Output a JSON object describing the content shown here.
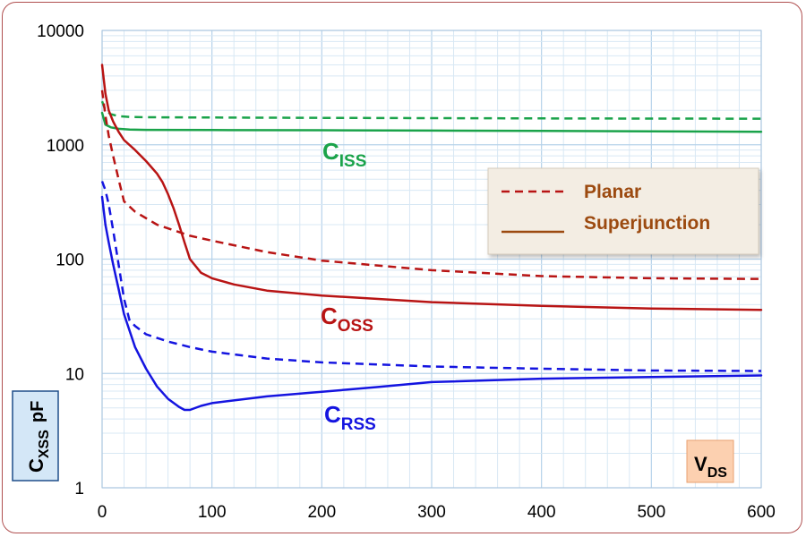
{
  "chart_data": {
    "type": "line",
    "title": "",
    "x_axis": {
      "scale": "linear",
      "range": [
        0,
        600
      ],
      "ticks": [
        0,
        100,
        200,
        300,
        400,
        500,
        600
      ],
      "tick_labels": [
        "0",
        "100",
        "200",
        "300",
        "400",
        "500",
        "600"
      ],
      "label_main": "V",
      "label_sub": "DS"
    },
    "y_axis": {
      "scale": "log",
      "range": [
        1,
        10000
      ],
      "ticks": [
        1,
        10,
        100,
        1000,
        10000
      ],
      "tick_labels": [
        "1",
        "10",
        "100",
        "1000",
        "10000"
      ],
      "label_main": "C",
      "label_sub": "XSS",
      "label_unit": "pF"
    },
    "grid": true,
    "legend": {
      "position": "right",
      "entries": [
        {
          "label": "Planar",
          "style": "dashed"
        },
        {
          "label": "Superjunction",
          "style": "solid"
        }
      ]
    },
    "curve_labels": [
      {
        "main": "C",
        "sub": "ISS",
        "color": "#1aa34a"
      },
      {
        "main": "C",
        "sub": "OSS",
        "color": "#b81414"
      },
      {
        "main": "C",
        "sub": "RSS",
        "color": "#1414e0"
      }
    ],
    "series": [
      {
        "group": "ISS",
        "style": "dashed",
        "color": "#1aa34a",
        "x": [
          0,
          3,
          8,
          15,
          25,
          40,
          100,
          200,
          300,
          400,
          500,
          600
        ],
        "y": [
          2400,
          2000,
          1850,
          1780,
          1750,
          1740,
          1730,
          1720,
          1710,
          1700,
          1695,
          1690
        ]
      },
      {
        "group": "ISS",
        "style": "solid",
        "color": "#1aa34a",
        "x": [
          0,
          3,
          8,
          15,
          25,
          40,
          100,
          200,
          300,
          400,
          500,
          600
        ],
        "y": [
          1900,
          1500,
          1420,
          1380,
          1360,
          1350,
          1345,
          1340,
          1330,
          1320,
          1310,
          1300
        ]
      },
      {
        "group": "OSS",
        "style": "dashed",
        "color": "#b81414",
        "x": [
          0,
          3,
          6,
          10,
          15,
          20,
          30,
          50,
          80,
          100,
          150,
          200,
          300,
          400,
          500,
          600
        ],
        "y": [
          3000,
          1800,
          1200,
          800,
          500,
          320,
          260,
          200,
          160,
          145,
          115,
          97,
          80,
          71,
          68,
          67
        ]
      },
      {
        "group": "OSS",
        "style": "solid",
        "color": "#b81414",
        "x": [
          0,
          3,
          6,
          10,
          15,
          20,
          30,
          40,
          50,
          55,
          60,
          65,
          70,
          75,
          80,
          90,
          100,
          120,
          150,
          200,
          300,
          400,
          500,
          600
        ],
        "y": [
          5000,
          2800,
          2000,
          1600,
          1300,
          1100,
          900,
          720,
          560,
          470,
          370,
          280,
          200,
          140,
          100,
          76,
          68,
          60,
          53,
          48,
          42,
          39,
          37,
          36
        ]
      },
      {
        "group": "RSS",
        "style": "dashed",
        "color": "#1414e0",
        "x": [
          0,
          3,
          6,
          10,
          15,
          20,
          25,
          30,
          40,
          60,
          80,
          100,
          150,
          200,
          300,
          400,
          500,
          600
        ],
        "y": [
          480,
          400,
          300,
          180,
          90,
          45,
          29,
          26,
          22,
          19,
          17,
          15.5,
          13.5,
          12.5,
          11.5,
          11,
          10.6,
          10.5
        ]
      },
      {
        "group": "RSS",
        "style": "solid",
        "color": "#1414e0",
        "x": [
          0,
          3,
          6,
          10,
          15,
          20,
          30,
          40,
          50,
          60,
          70,
          75,
          80,
          90,
          100,
          150,
          200,
          250,
          300,
          400,
          500,
          600
        ],
        "y": [
          350,
          200,
          140,
          90,
          55,
          33,
          17,
          11,
          7.7,
          6,
          5.1,
          4.8,
          4.8,
          5.2,
          5.5,
          6.3,
          6.9,
          7.6,
          8.4,
          9,
          9.3,
          9.6
        ]
      }
    ]
  }
}
